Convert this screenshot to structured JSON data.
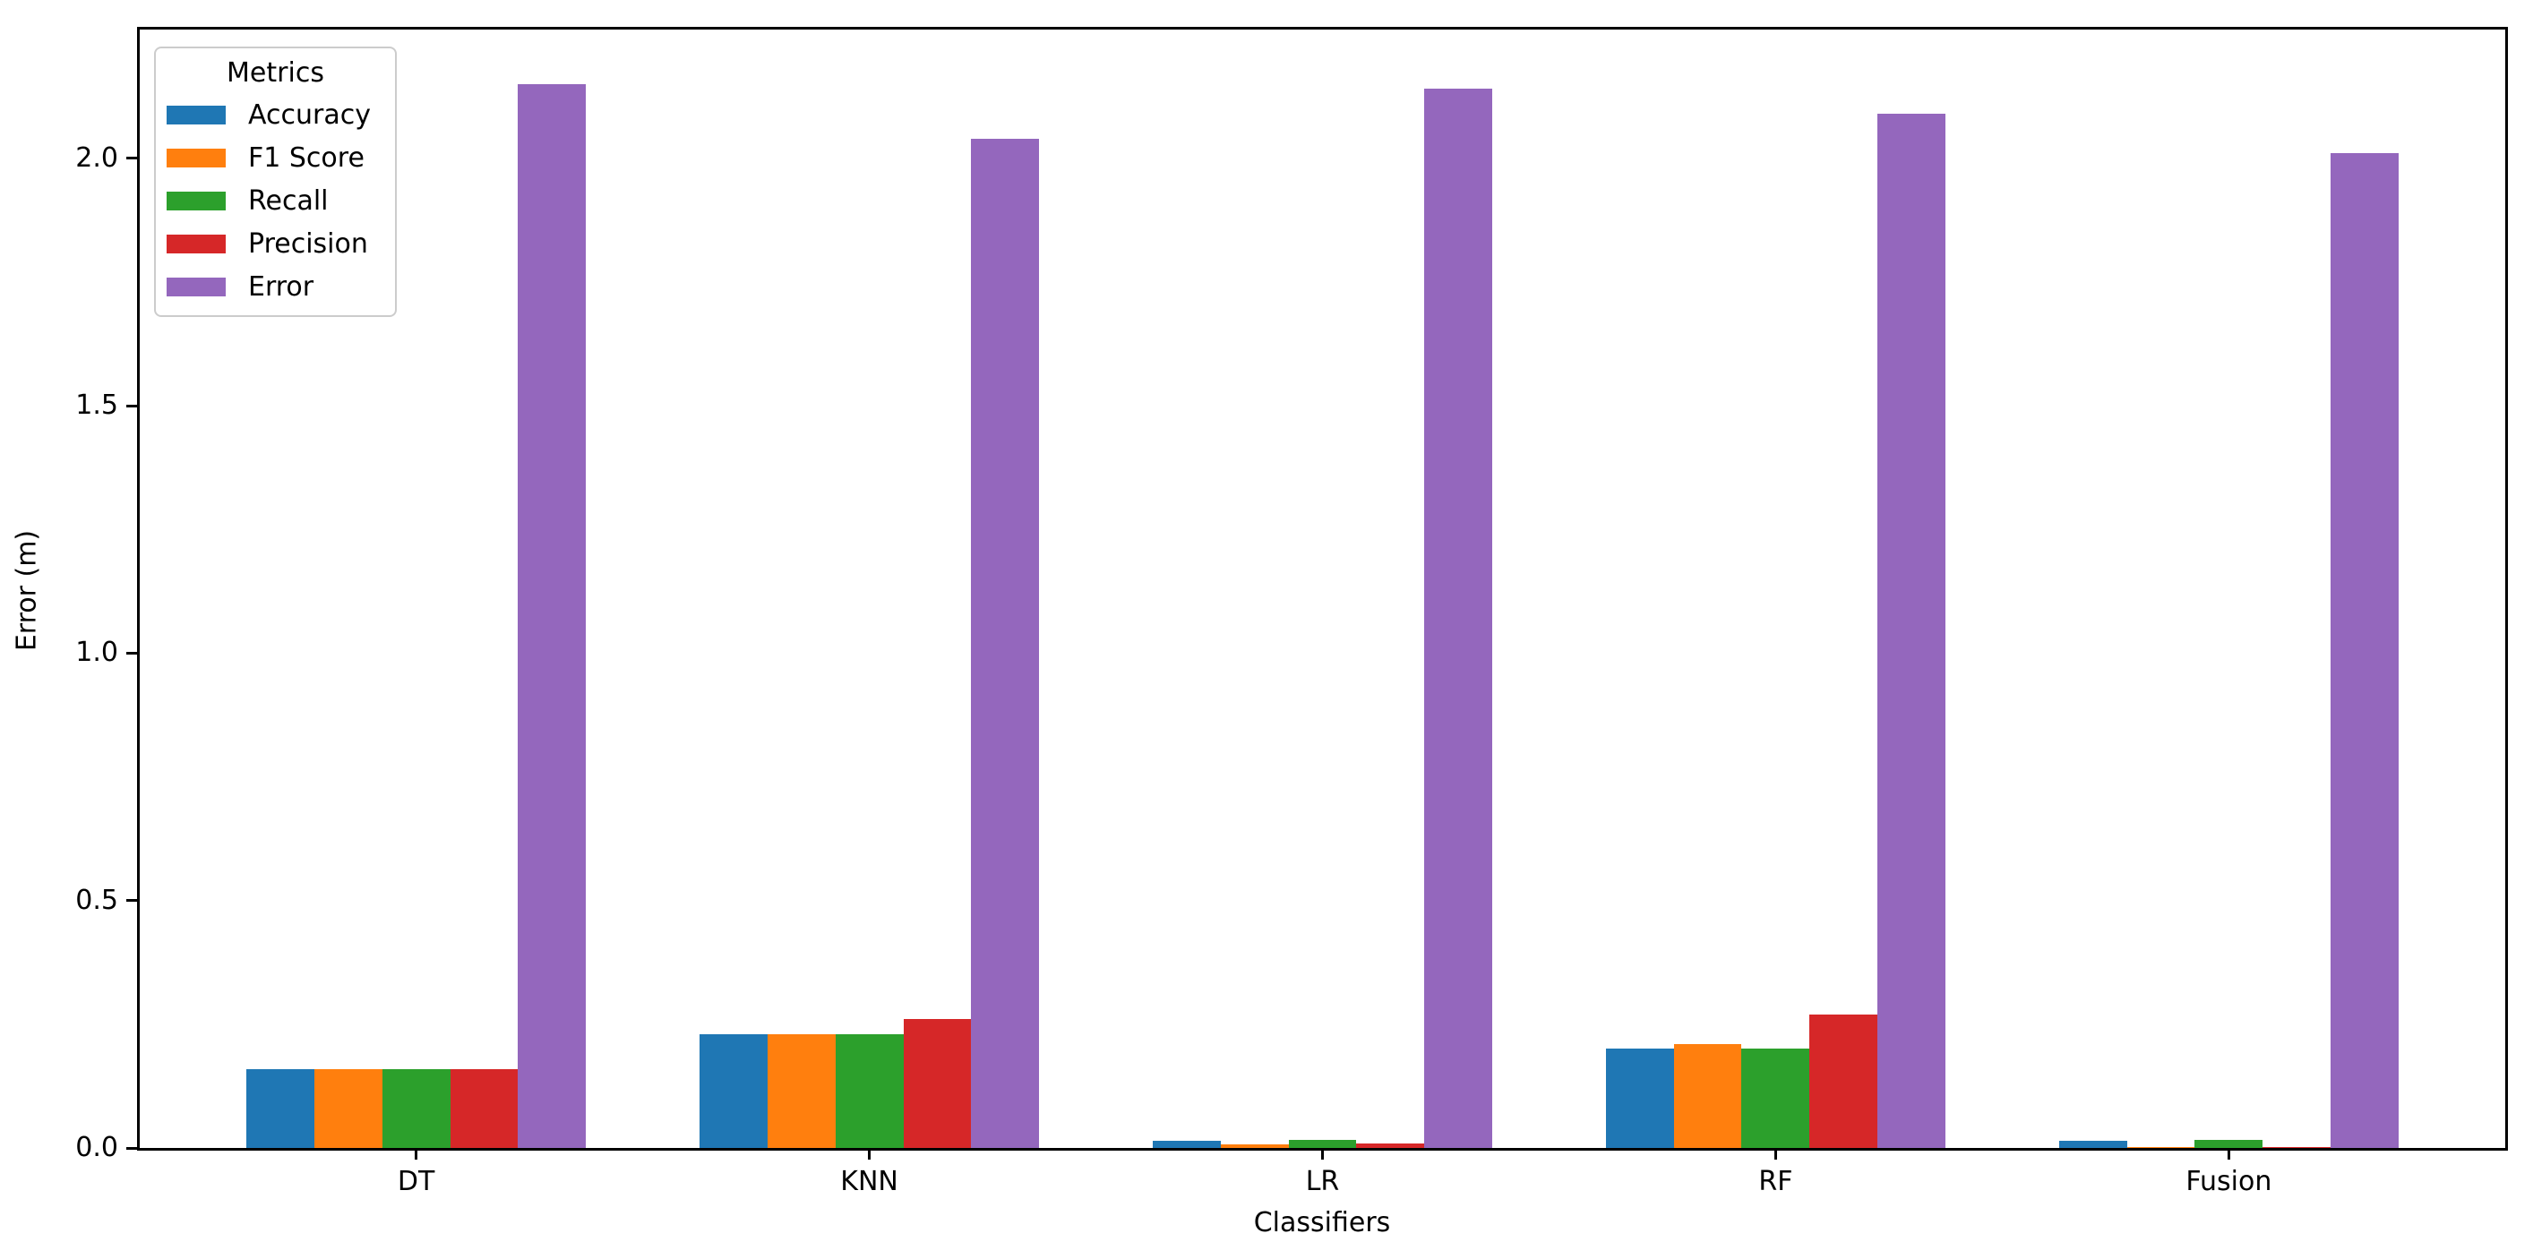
{
  "chart_data": {
    "type": "bar",
    "title": "",
    "xlabel": "Classifiers",
    "ylabel": "Error (m)",
    "categories": [
      "DT",
      "KNN",
      "LR",
      "RF",
      "Fusion"
    ],
    "series": [
      {
        "name": "Accuracy",
        "color": "#1f77b4",
        "values": [
          0.16,
          0.23,
          0.015,
          0.2,
          0.015
        ]
      },
      {
        "name": "F1 Score",
        "color": "#ff7f0e",
        "values": [
          0.16,
          0.23,
          0.007,
          0.21,
          0.001
        ]
      },
      {
        "name": "Recall",
        "color": "#2ca02c",
        "values": [
          0.16,
          0.23,
          0.016,
          0.2,
          0.016
        ]
      },
      {
        "name": "Precision",
        "color": "#d62728",
        "values": [
          0.16,
          0.26,
          0.009,
          0.27,
          0.001
        ]
      },
      {
        "name": "Error",
        "color": "#9467bd",
        "values": [
          2.15,
          2.04,
          2.14,
          2.09,
          2.01
        ]
      }
    ],
    "legend": {
      "title": "Metrics",
      "position": "upper left"
    },
    "ylim": [
      0,
      2.26
    ],
    "yticks": [
      0.0,
      0.5,
      1.0,
      1.5,
      2.0
    ],
    "ytick_labels": [
      "0.0",
      "0.5",
      "1.0",
      "1.5",
      "2.0"
    ],
    "grid": false,
    "background_color": "#ffffff",
    "spine_color": "#000000"
  }
}
